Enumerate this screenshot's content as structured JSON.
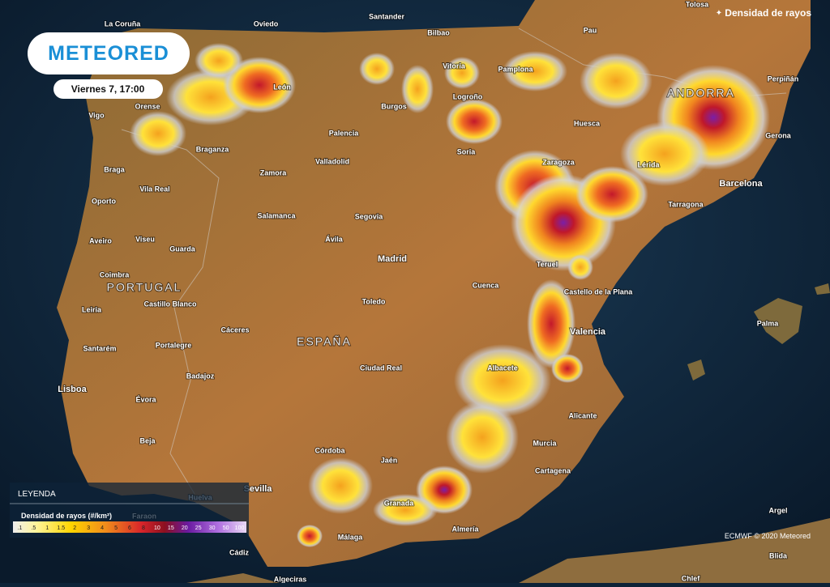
{
  "header": {
    "logo": "METEORED",
    "date": "Viernes 7, 17:00"
  },
  "layer": "Densidad de rayos",
  "legend": {
    "title": "LEYENDA",
    "subtitle": "Densidad de rayos (#/km²)",
    "steps": [
      ".1",
      ".5",
      "1",
      "1.5",
      "2",
      "3",
      "4",
      "5",
      "6",
      "8",
      "10",
      "15",
      "20",
      "25",
      "30",
      "50",
      "100"
    ]
  },
  "credit": "ECMWF © 2020 Meteored",
  "places": [
    "La Coruña",
    "Oviedo",
    "Santander",
    "Bilbao",
    "Tolosa",
    "Pau",
    "Vitoria",
    "Pamplona",
    "Perpiñán",
    "León",
    "Orense",
    "Vigo",
    "Burgos",
    "Logroño",
    "Huesca",
    "ANDORRA",
    "Gerona",
    "Palencia",
    "Braganza",
    "Soria",
    "Zaragoza",
    "Lérida",
    "Barcelona",
    "Braga",
    "Zamora",
    "Valladolid",
    "Vila Real",
    "Oporto",
    "Tarragona",
    "Salamanca",
    "Segovia",
    "Aveiro",
    "Viseu",
    "Ávila",
    "Guarda",
    "Teruel",
    "Madrid",
    "Coimbra",
    "PORTUGAL",
    "Cuenca",
    "Castello de la Plana",
    "Leiria",
    "Castillo Blanco",
    "Toledo",
    "Palma",
    "Valencia",
    "Santarém",
    "Cáceres",
    "Portalegre",
    "ESPAÑA",
    "Lisboa",
    "Badajoz",
    "Ciudad Real",
    "Albacete",
    "Évora",
    "Alicante",
    "Beja",
    "Córdoba",
    "Murcia",
    "Jaén",
    "Cartagena",
    "Huelva",
    "Sevilla",
    "Faraon",
    "Granada",
    "Almería",
    "Málaga",
    "Cádiz",
    "Algeciras",
    "Argel",
    "Blida",
    "Chlef"
  ]
}
